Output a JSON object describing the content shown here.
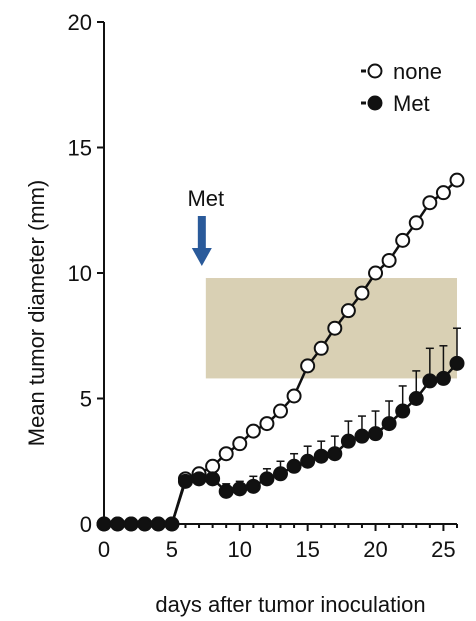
{
  "chart_data": {
    "type": "line",
    "title": "",
    "xlabel": "days after tumor inoculation",
    "ylabel": "Mean tumor diameter (mm)",
    "xlim": [
      0,
      26
    ],
    "ylim": [
      0,
      20
    ],
    "xticks": [
      0,
      5,
      10,
      15,
      20,
      25
    ],
    "yticks": [
      0,
      5,
      10,
      15,
      20
    ],
    "legend_position": "top-right",
    "annotation": {
      "text": "Met",
      "x": 7.5,
      "color": "#2a5a9a"
    },
    "shaded_region": {
      "x0": 7.5,
      "x1": 26,
      "y0": 5.8,
      "y1": 9.8,
      "color": "#d9d0b4"
    },
    "series": [
      {
        "name": "none",
        "marker": "open-circle",
        "x": [
          0,
          1,
          2,
          3,
          4,
          5,
          6,
          7,
          8,
          9,
          10,
          11,
          12,
          13,
          14,
          15,
          16,
          17,
          18,
          19,
          20,
          21,
          22,
          23,
          24,
          25,
          26
        ],
        "y": [
          0,
          0,
          0,
          0,
          0,
          0,
          1.8,
          2.0,
          2.3,
          2.8,
          3.2,
          3.7,
          4.0,
          4.5,
          5.1,
          6.3,
          7.0,
          7.8,
          8.5,
          9.2,
          10.0,
          10.5,
          11.3,
          12.0,
          12.8,
          13.2,
          13.7
        ],
        "error": []
      },
      {
        "name": "Met",
        "marker": "filled-circle",
        "x": [
          0,
          1,
          2,
          3,
          4,
          5,
          6,
          7,
          8,
          9,
          10,
          11,
          12,
          13,
          14,
          15,
          16,
          17,
          18,
          19,
          20,
          21,
          22,
          23,
          24,
          25,
          26
        ],
        "y": [
          0,
          0,
          0,
          0,
          0,
          0,
          1.7,
          1.8,
          1.8,
          1.3,
          1.4,
          1.5,
          1.8,
          2.0,
          2.3,
          2.5,
          2.7,
          2.8,
          3.3,
          3.5,
          3.6,
          4.0,
          4.5,
          5.0,
          5.7,
          5.8,
          6.4
        ],
        "error": [
          0,
          0,
          0,
          0,
          0,
          0,
          0.2,
          0.2,
          0.2,
          0.3,
          0.3,
          0.4,
          0.4,
          0.5,
          0.5,
          0.6,
          0.6,
          0.7,
          0.8,
          0.8,
          0.9,
          0.9,
          1.0,
          1.1,
          1.3,
          1.3,
          1.4
        ]
      }
    ]
  }
}
